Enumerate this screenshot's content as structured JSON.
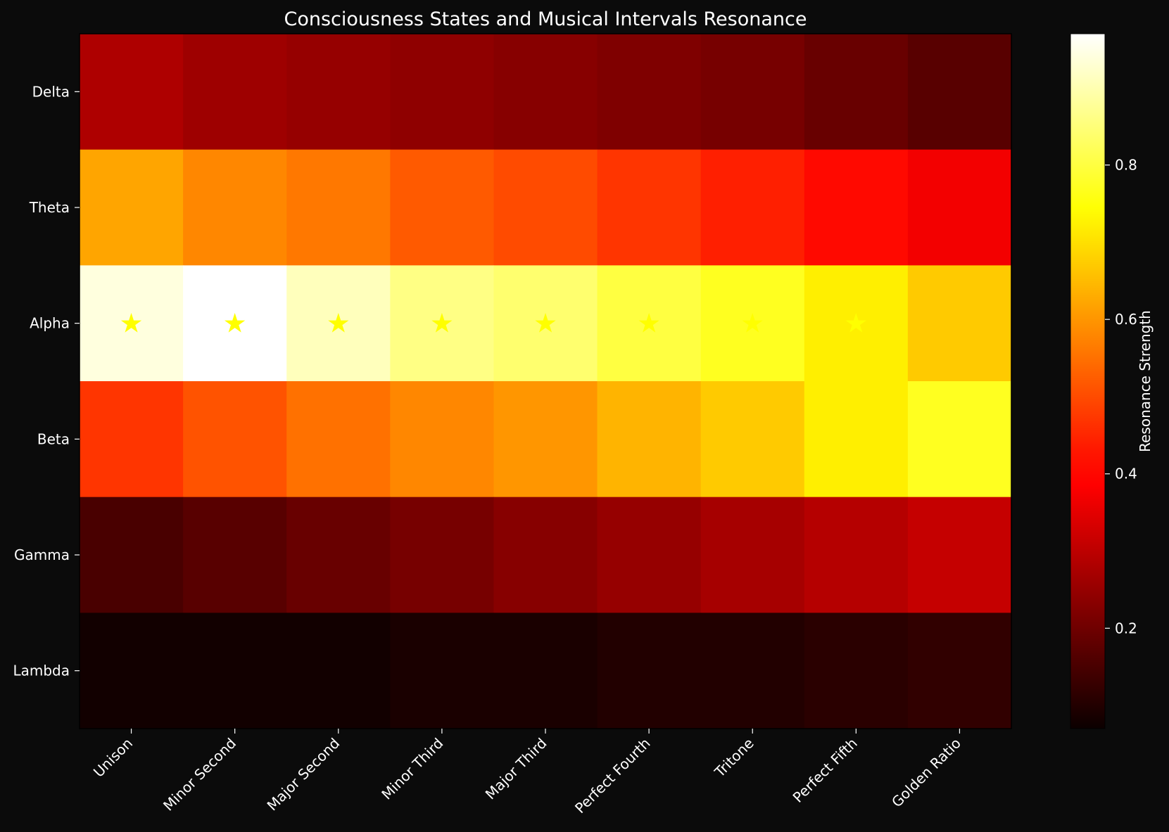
{
  "chart_data": {
    "type": "heatmap",
    "title": "Consciousness States and Musical Intervals Resonance",
    "rows": [
      "Delta",
      "Theta",
      "Alpha",
      "Beta",
      "Gamma",
      "Lambda"
    ],
    "columns": [
      "Unison",
      "Minor Second",
      "Major Second",
      "Minor Third",
      "Major Third",
      "Perfect Fourth",
      "Tritone",
      "Perfect Fifth",
      "Golden Ratio"
    ],
    "values": [
      [
        0.28,
        0.26,
        0.25,
        0.24,
        0.23,
        0.22,
        0.21,
        0.19,
        0.17
      ],
      [
        0.62,
        0.58,
        0.56,
        0.52,
        0.5,
        0.47,
        0.44,
        0.41,
        0.37
      ],
      [
        0.94,
        0.97,
        0.91,
        0.86,
        0.84,
        0.8,
        0.77,
        0.72,
        0.67
      ],
      [
        0.47,
        0.51,
        0.55,
        0.58,
        0.6,
        0.64,
        0.67,
        0.72,
        0.77
      ],
      [
        0.15,
        0.17,
        0.19,
        0.21,
        0.23,
        0.25,
        0.27,
        0.29,
        0.31
      ],
      [
        0.08,
        0.08,
        0.08,
        0.09,
        0.09,
        0.1,
        0.1,
        0.11,
        0.12
      ]
    ],
    "markers": {
      "symbol": "★",
      "color": "#ffff00",
      "cells": [
        [
          2,
          0
        ],
        [
          2,
          1
        ],
        [
          2,
          2
        ],
        [
          2,
          3
        ],
        [
          2,
          4
        ],
        [
          2,
          5
        ],
        [
          2,
          6
        ],
        [
          2,
          7
        ]
      ]
    },
    "colormap": "hot",
    "vmin": 0.07,
    "vmax": 0.97,
    "colorbar": {
      "label": "Resonance Strength",
      "ticks": [
        0.2,
        0.4,
        0.6,
        0.8
      ]
    },
    "xtick_rotation": 45,
    "grid": false
  },
  "colors": {
    "background": "#0b0b0b",
    "text": "#ffffff",
    "marker": "#ffff00"
  }
}
